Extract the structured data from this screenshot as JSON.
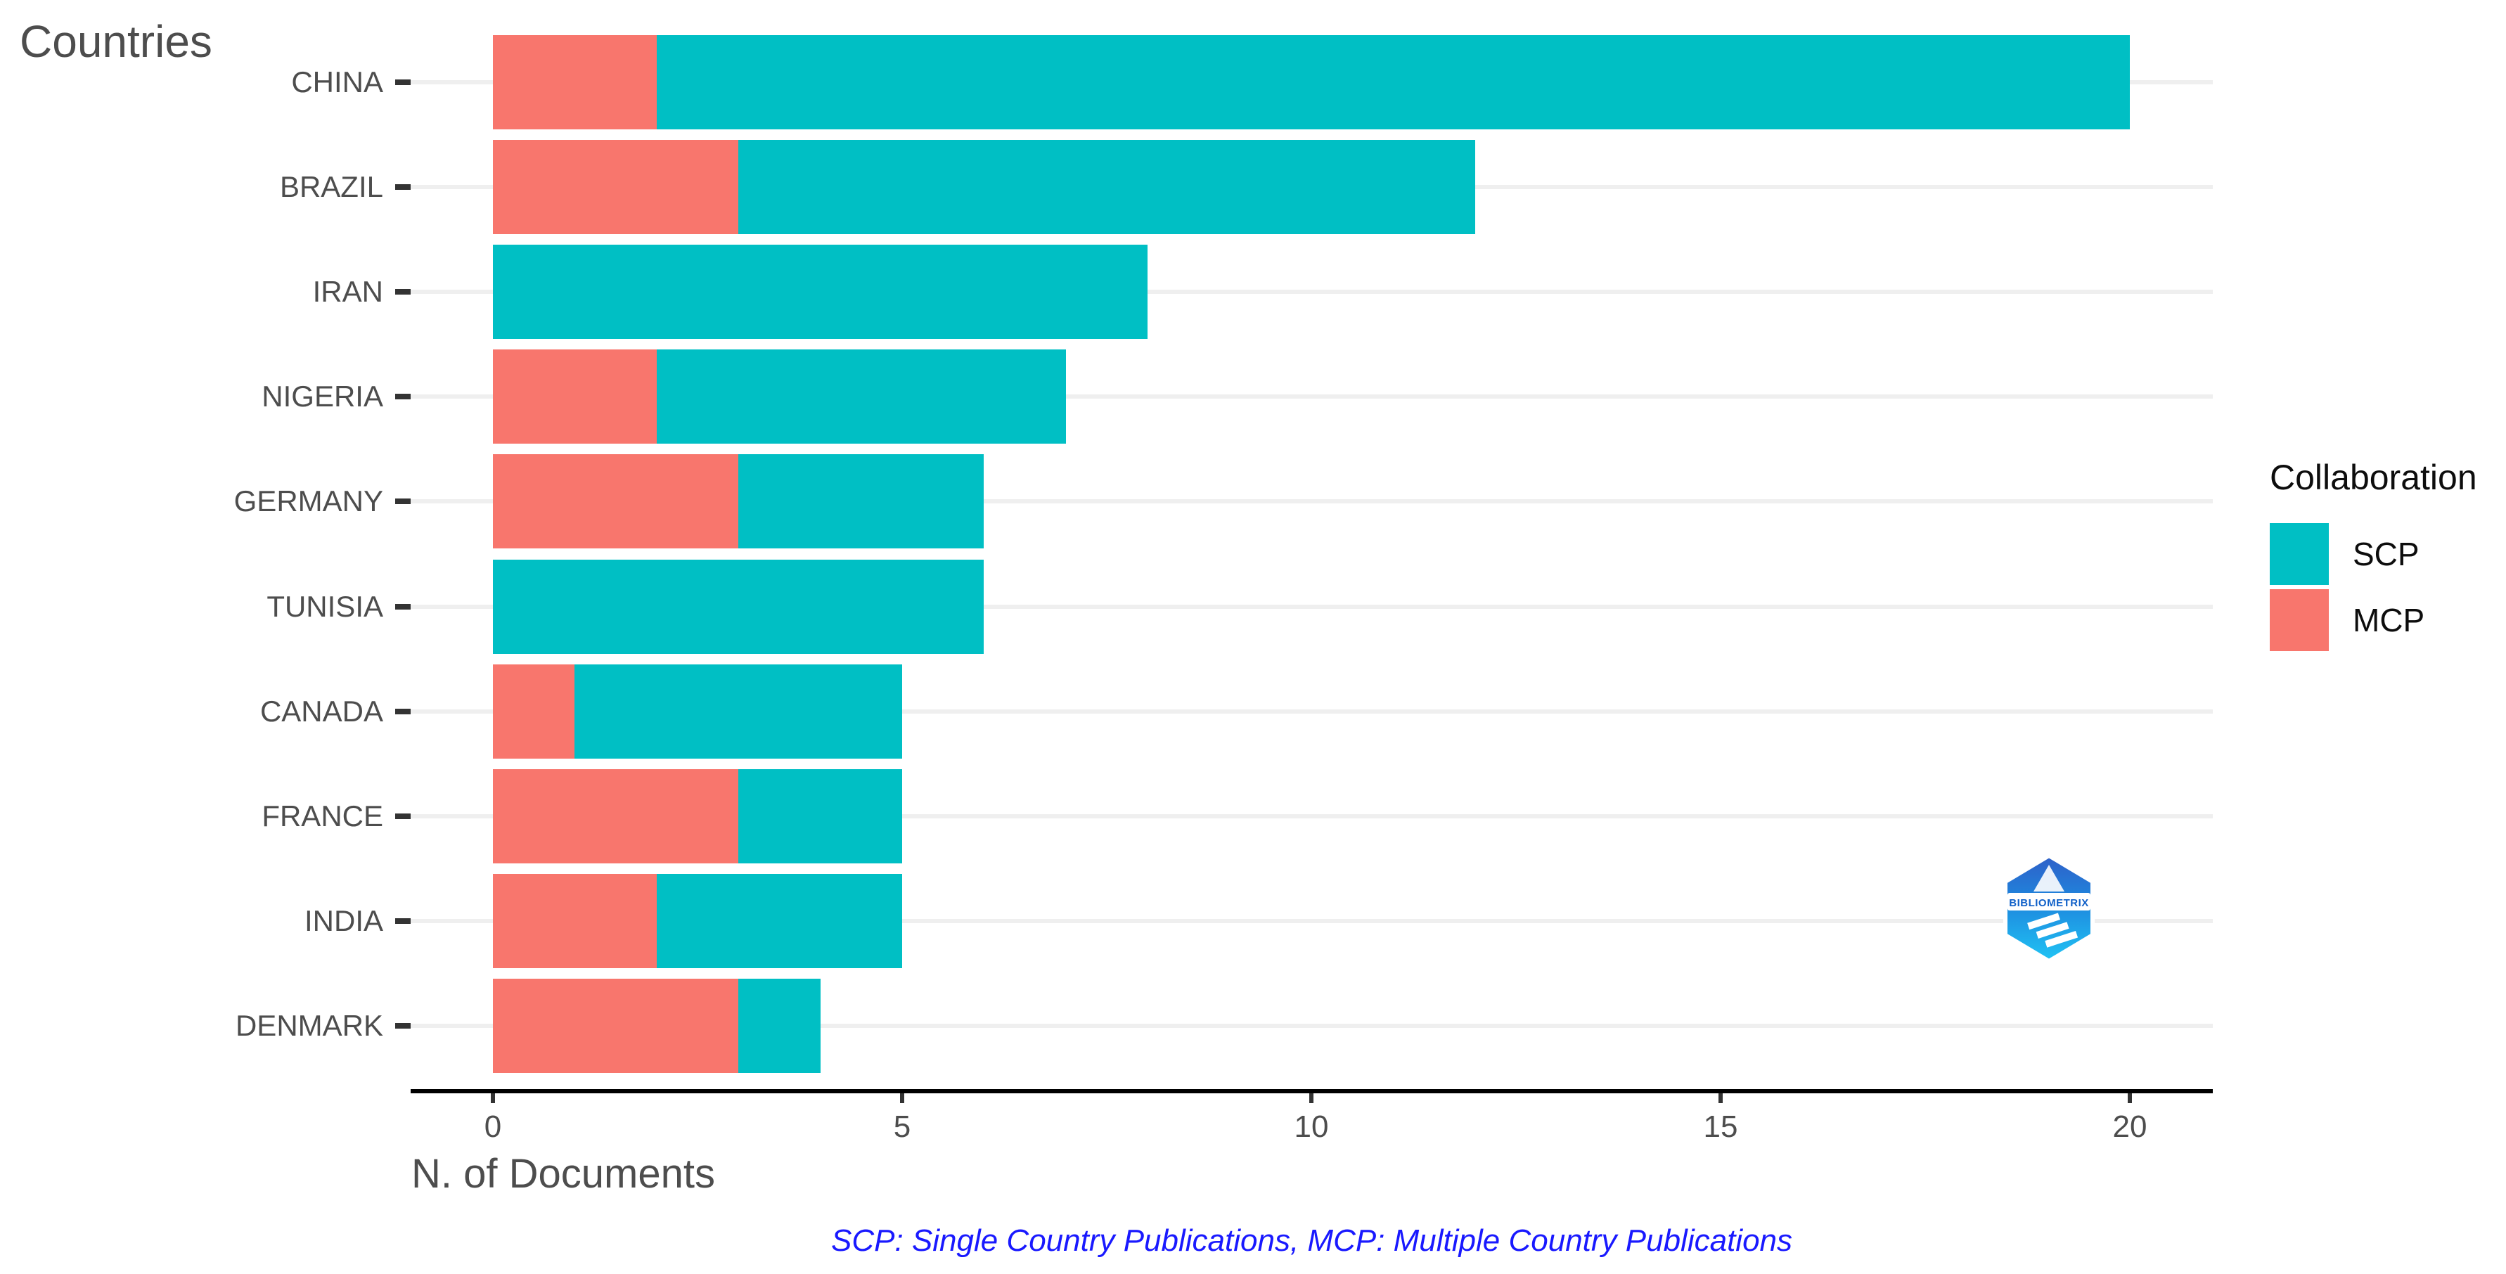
{
  "title": "Countries",
  "x_axis": {
    "label": "N. of Documents",
    "tick_labels": [
      "0",
      "5",
      "10",
      "15",
      "20"
    ]
  },
  "caption": {
    "text": "SCP: Single Country Publications, MCP: Multiple Country Publications",
    "color": "#1919ff"
  },
  "legend": {
    "title": "Collaboration",
    "items": [
      {
        "label": "SCP",
        "color": "#00bfc4"
      },
      {
        "label": "MCP",
        "color": "#f8766d"
      }
    ]
  },
  "logo": {
    "label": "BIBLIOMETRIX"
  },
  "colors": {
    "text": "#4d4d4d",
    "axis_line": "#000000",
    "tick_mark": "#333333",
    "gridline": "#efefef",
    "background": "#ffffff",
    "scp": "#00bfc4",
    "mcp": "#f8766d"
  },
  "chart_data": {
    "type": "bar",
    "orientation": "horizontal",
    "stacked": true,
    "title": "Countries",
    "xlabel": "N. of Documents",
    "ylabel": "Countries",
    "categories": [
      "CHINA",
      "BRAZIL",
      "IRAN",
      "NIGERIA",
      "GERMANY",
      "TUNISIA",
      "CANADA",
      "FRANCE",
      "INDIA",
      "DENMARK"
    ],
    "series": [
      {
        "name": "MCP",
        "color": "#f8766d",
        "values": [
          2,
          3,
          0,
          2,
          3,
          0,
          1,
          3,
          2,
          3
        ]
      },
      {
        "name": "SCP",
        "color": "#00bfc4",
        "values": [
          18,
          9,
          8,
          5,
          3,
          6,
          4,
          2,
          3,
          1
        ]
      }
    ],
    "totals": [
      20,
      12,
      8,
      7,
      6,
      6,
      5,
      5,
      5,
      4
    ],
    "xlim": [
      0,
      20
    ],
    "x_ticks": [
      0,
      5,
      10,
      15,
      20
    ],
    "grid": "horizontal-major-only",
    "legend_position": "right",
    "bar_stack_order_from_zero": [
      "MCP",
      "SCP"
    ],
    "legend_order": [
      "SCP",
      "MCP"
    ]
  }
}
